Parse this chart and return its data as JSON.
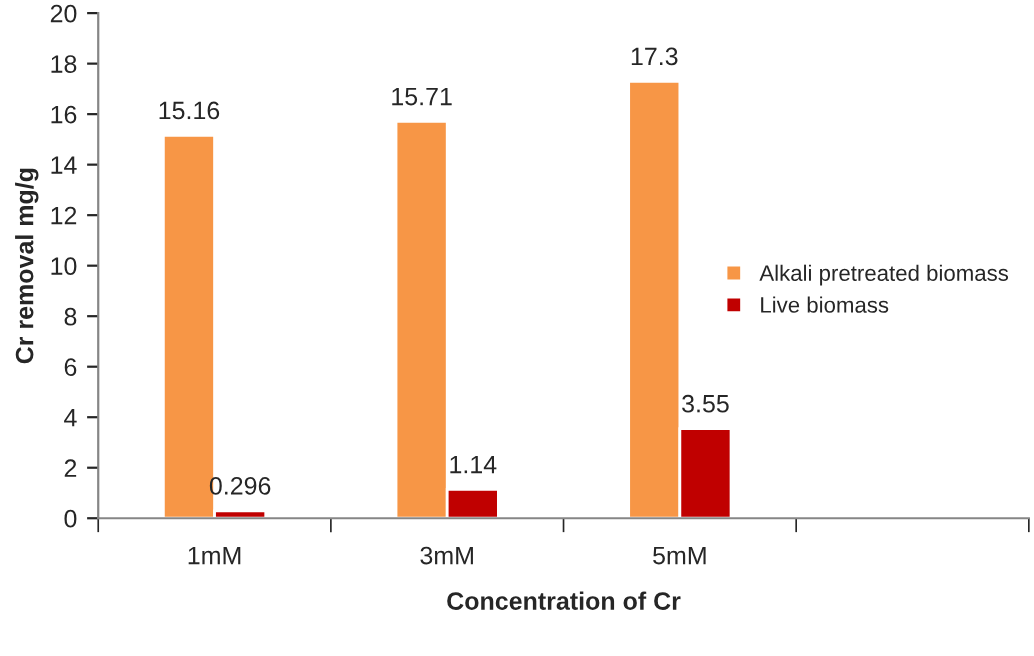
{
  "chart_data": {
    "type": "bar",
    "xlabel": "Concentration of Cr",
    "ylabel": "Cr removal mg/g",
    "categories": [
      "1mM",
      "3mM",
      "5mM",
      null
    ],
    "series": [
      {
        "name": "Alkali pretreated biomass",
        "color": "#f79646",
        "values": [
          15.16,
          15.71,
          17.3,
          null
        ]
      },
      {
        "name": "Live biomass",
        "color": "#c00000",
        "values": [
          0.296,
          1.14,
          3.55,
          null
        ]
      }
    ],
    "ylim": [
      0,
      20
    ],
    "yticks": [
      0,
      2,
      4,
      6,
      8,
      10,
      12,
      14,
      16,
      18,
      20
    ],
    "data_labels": true,
    "grid": false,
    "legend": "right"
  }
}
